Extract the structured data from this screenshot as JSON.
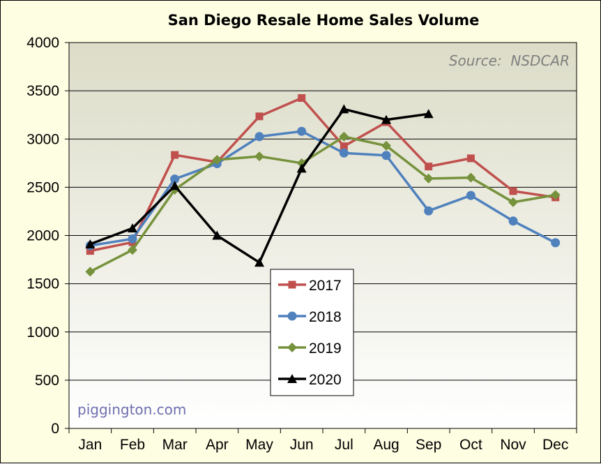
{
  "chart_data": {
    "type": "line",
    "title": "San Diego Resale Home Sales Volume",
    "source_note": "Source:  NSDCAR",
    "watermark": "piggington.com",
    "categories": [
      "Jan",
      "Feb",
      "Mar",
      "Apr",
      "May",
      "Jun",
      "Jul",
      "Aug",
      "Sep",
      "Oct",
      "Nov",
      "Dec"
    ],
    "y_ticks": [
      "0",
      "500",
      "1000",
      "1500",
      "2000",
      "2500",
      "3000",
      "3500",
      "4000"
    ],
    "ylim": [
      0,
      4000
    ],
    "grid": true,
    "legend_position": "center-bottom",
    "series": [
      {
        "name": "2017",
        "color": "#c0504d",
        "marker": "square",
        "values": [
          1840,
          1930,
          2835,
          2760,
          3235,
          3425,
          2925,
          3175,
          2715,
          2800,
          2460,
          2395
        ]
      },
      {
        "name": "2018",
        "color": "#4f81bd",
        "marker": "circle",
        "values": [
          1895,
          1965,
          2585,
          2745,
          3025,
          3080,
          2855,
          2830,
          2255,
          2415,
          2150,
          1925
        ]
      },
      {
        "name": "2019",
        "color": "#76923c",
        "marker": "diamond",
        "values": [
          1625,
          1850,
          2475,
          2785,
          2820,
          2750,
          3025,
          2930,
          2590,
          2600,
          2345,
          2420
        ]
      },
      {
        "name": "2020",
        "color": "#000000",
        "marker": "triangle",
        "values": [
          1910,
          2075,
          2515,
          2000,
          1720,
          2695,
          3310,
          3200,
          3260,
          null,
          null,
          null
        ]
      }
    ]
  }
}
